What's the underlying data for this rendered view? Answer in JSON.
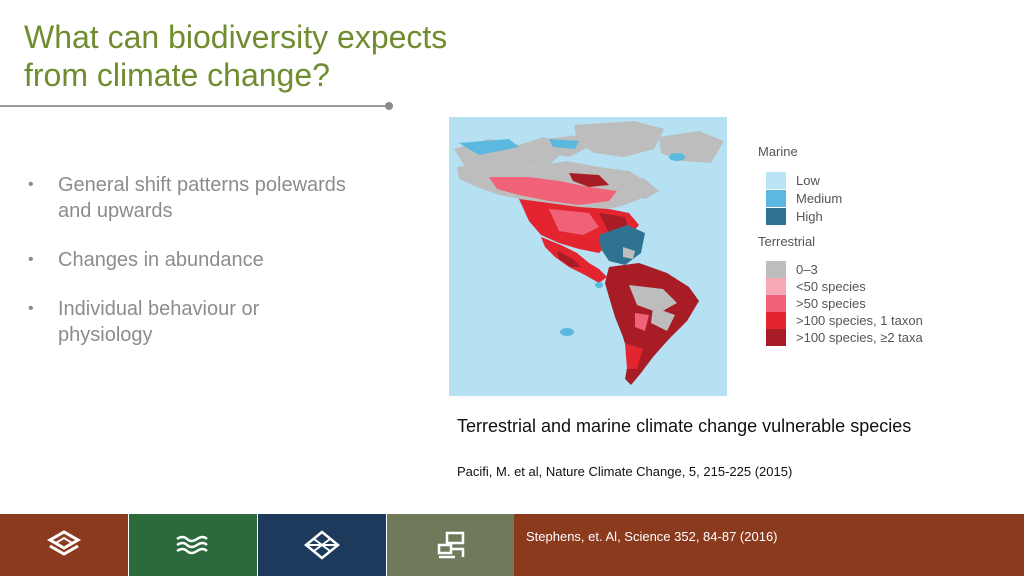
{
  "slide": {
    "title_line1": "What can biodiversity expects",
    "title_line2": "from climate change?",
    "bullets": [
      "General shift patterns polewards and upwards",
      "Changes in abundance",
      "Individual behaviour or physiology"
    ],
    "caption": "Terrestrial and marine climate change vulnerable species",
    "citation": "Pacifi, M. et al, Nature Climate Change, 5, 215-225 (2015)",
    "footer_reference": "Stephens, et. Al,  Science 352, 84-87 (2016)"
  },
  "legend": {
    "marine_heading": "Marine",
    "marine_items": [
      {
        "label": "Low",
        "color": "#b8e4f6"
      },
      {
        "label": "Medium",
        "color": "#5bb8df"
      },
      {
        "label": "High",
        "color": "#2f7392"
      }
    ],
    "terrestrial_heading": "Terrestrial",
    "terrestrial_items": [
      {
        "label": "0–3",
        "color": "#bdbdbd"
      },
      {
        "label": "<50 species",
        "color": "#f7a8b4"
      },
      {
        "label": ">50 species",
        "color": "#ef6278"
      },
      {
        "label": ">100 species, 1 taxon",
        "color": "#e2252f"
      },
      {
        "label": ">100 species, ≥2 taxa",
        "color": "#a81c25"
      }
    ]
  },
  "footer": {
    "tiles": [
      {
        "icon": "layers-icon",
        "color": "#8c3a1e"
      },
      {
        "icon": "waves-icon",
        "color": "#2c6a3c"
      },
      {
        "icon": "diamond-lattice-icon",
        "color": "#1d3a5c"
      },
      {
        "icon": "circuit-blocks-icon",
        "color": "#6f7a5a"
      }
    ],
    "band_color": "#8c3a1e"
  },
  "colors": {
    "title": "#6f8c2f",
    "body_text": "#8c8c8c",
    "ocean": "#b5e1f2"
  }
}
